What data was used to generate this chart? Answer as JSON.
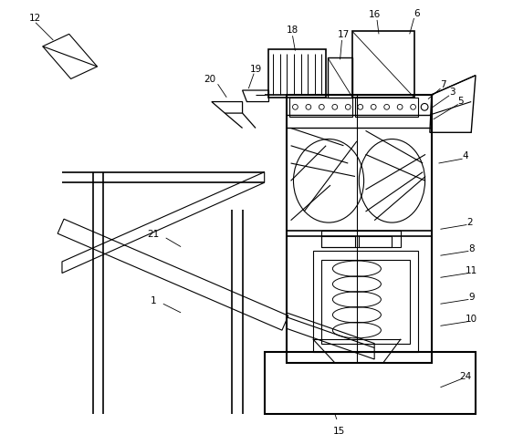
{
  "bg_color": "#ffffff",
  "line_color": "#000000",
  "fig_width": 5.62,
  "fig_height": 4.76,
  "dpi": 100
}
